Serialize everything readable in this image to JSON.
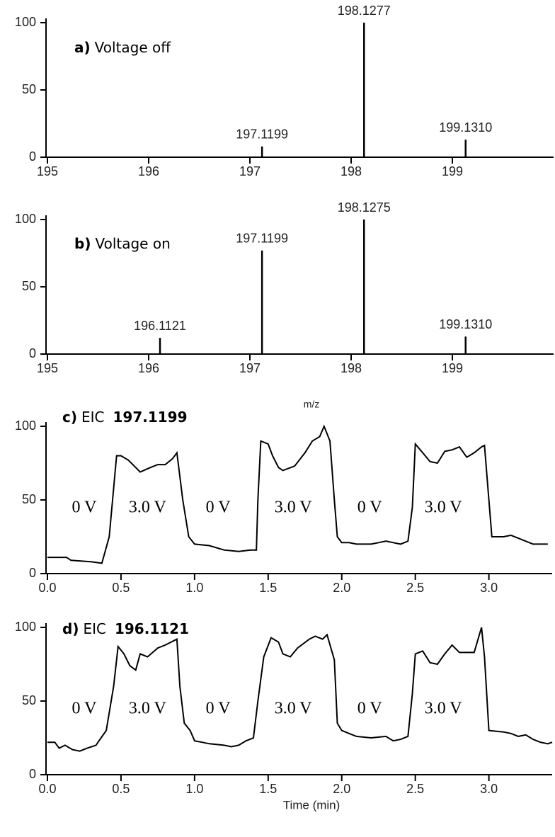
{
  "chart_data": [
    {
      "type": "stem",
      "panel_label": "a)",
      "title": "Voltage off",
      "x": [
        197.1199,
        198.1277,
        199.131
      ],
      "x_labels": [
        "197.1199",
        "198.1277",
        "199.1310"
      ],
      "values": [
        8,
        100,
        13
      ],
      "color": "#000000",
      "xlim": [
        195,
        200
      ],
      "xticks": [
        195,
        196,
        197,
        198,
        199
      ],
      "ylim": [
        0,
        100
      ],
      "yticks": [
        0,
        50,
        100
      ]
    },
    {
      "type": "stem",
      "panel_label": "b)",
      "title": "Voltage on",
      "xlabel": "m/z",
      "x": [
        196.1121,
        197.1199,
        198.1275,
        199.131
      ],
      "x_labels": [
        "196.1121",
        "197.1199",
        "198.1275",
        "199.1310"
      ],
      "values": [
        12,
        77,
        100,
        13
      ],
      "color": "#000000",
      "xlim": [
        195,
        200
      ],
      "xticks": [
        195,
        196,
        197,
        198,
        199
      ],
      "ylim": [
        0,
        100
      ],
      "yticks": [
        0,
        50,
        100
      ]
    },
    {
      "type": "line",
      "panel_label": "c)",
      "title": "EIC",
      "title_bold": "197.1199",
      "annotations": [
        "0 V",
        "3.0 V",
        "0 V",
        "3.0 V",
        "0 V",
        "3.0 V"
      ],
      "x": [
        0,
        0.13,
        0.16,
        0.3,
        0.37,
        0.42,
        0.47,
        0.5,
        0.55,
        0.6,
        0.63,
        0.7,
        0.75,
        0.8,
        0.85,
        0.88,
        0.92,
        0.96,
        1.0,
        1.1,
        1.2,
        1.3,
        1.38,
        1.42,
        1.43,
        1.45,
        1.5,
        1.53,
        1.57,
        1.6,
        1.68,
        1.75,
        1.8,
        1.85,
        1.88,
        1.92,
        1.95,
        1.97,
        2.0,
        2.05,
        2.1,
        2.2,
        2.25,
        2.3,
        2.35,
        2.4,
        2.45,
        2.48,
        2.5,
        2.55,
        2.6,
        2.65,
        2.7,
        2.75,
        2.8,
        2.85,
        2.9,
        2.95,
        2.97,
        3.0,
        3.02,
        3.1,
        3.15,
        3.2,
        3.3,
        3.35,
        3.4
      ],
      "values": [
        11,
        11,
        9,
        8,
        7,
        25,
        80,
        80,
        77,
        72,
        69,
        72,
        74,
        74,
        78,
        82,
        50,
        25,
        20,
        19,
        16,
        15,
        16,
        16,
        50,
        90,
        88,
        80,
        72,
        70,
        73,
        82,
        90,
        93,
        100,
        90,
        50,
        25,
        21,
        21,
        20,
        20,
        21,
        22,
        21,
        20,
        22,
        45,
        88,
        82,
        76,
        75,
        83,
        84,
        86,
        79,
        82,
        86,
        87,
        50,
        25,
        25,
        26,
        24,
        20,
        20,
        20
      ],
      "color": "#000000",
      "xlim": [
        0,
        3.43
      ],
      "xticks": [
        {
          "value": 0,
          "label": "0.0"
        },
        0.5,
        {
          "value": 1,
          "label": "1.0"
        },
        1.5,
        {
          "value": 2,
          "label": "2.0"
        },
        2.5,
        {
          "value": 3,
          "label": "3.0"
        }
      ],
      "ylim": [
        0,
        100
      ],
      "yticks": [
        0,
        50,
        100
      ]
    },
    {
      "type": "line",
      "panel_label": "d)",
      "title": "EIC",
      "title_bold": "196.1121",
      "xlabel": "Time (min)",
      "annotations": [
        "0 V",
        "3.0 V",
        "0 V",
        "3.0 V",
        "0 V",
        "3.0 V"
      ],
      "x": [
        0,
        0.05,
        0.08,
        0.12,
        0.17,
        0.22,
        0.27,
        0.33,
        0.35,
        0.4,
        0.45,
        0.48,
        0.52,
        0.56,
        0.6,
        0.63,
        0.68,
        0.75,
        0.8,
        0.88,
        0.9,
        0.93,
        0.97,
        1.0,
        1.05,
        1.1,
        1.2,
        1.25,
        1.3,
        1.35,
        1.4,
        1.43,
        1.47,
        1.52,
        1.57,
        1.6,
        1.65,
        1.7,
        1.78,
        1.82,
        1.87,
        1.9,
        1.95,
        1.97,
        2.0,
        2.05,
        2.1,
        2.2,
        2.3,
        2.35,
        2.4,
        2.45,
        2.48,
        2.5,
        2.55,
        2.6,
        2.65,
        2.7,
        2.75,
        2.8,
        2.85,
        2.9,
        2.95,
        2.97,
        3.0,
        3.1,
        3.15,
        3.2,
        3.25,
        3.3,
        3.35,
        3.4,
        3.43
      ],
      "values": [
        22,
        22,
        18,
        20,
        17,
        16,
        18,
        20,
        23,
        30,
        60,
        87,
        82,
        74,
        71,
        82,
        80,
        86,
        88,
        92,
        60,
        35,
        30,
        23,
        22,
        21,
        20,
        19,
        20,
        23,
        25,
        50,
        80,
        93,
        90,
        82,
        80,
        86,
        92,
        94,
        92,
        95,
        78,
        35,
        30,
        28,
        26,
        25,
        26,
        23,
        24,
        26,
        55,
        82,
        84,
        76,
        75,
        82,
        88,
        83,
        83,
        83,
        100,
        80,
        30,
        29,
        28,
        26,
        27,
        24,
        22,
        21,
        22
      ],
      "color": "#000000",
      "xlim": [
        0,
        3.43
      ],
      "xticks": [
        {
          "value": 0,
          "label": "0.0"
        },
        0.5,
        {
          "value": 1,
          "label": "1.0"
        },
        1.5,
        {
          "value": 2,
          "label": "2.0"
        },
        2.5,
        {
          "value": 3,
          "label": "3.0"
        }
      ],
      "ylim": [
        0,
        100
      ],
      "yticks": [
        0,
        50,
        100
      ]
    }
  ]
}
